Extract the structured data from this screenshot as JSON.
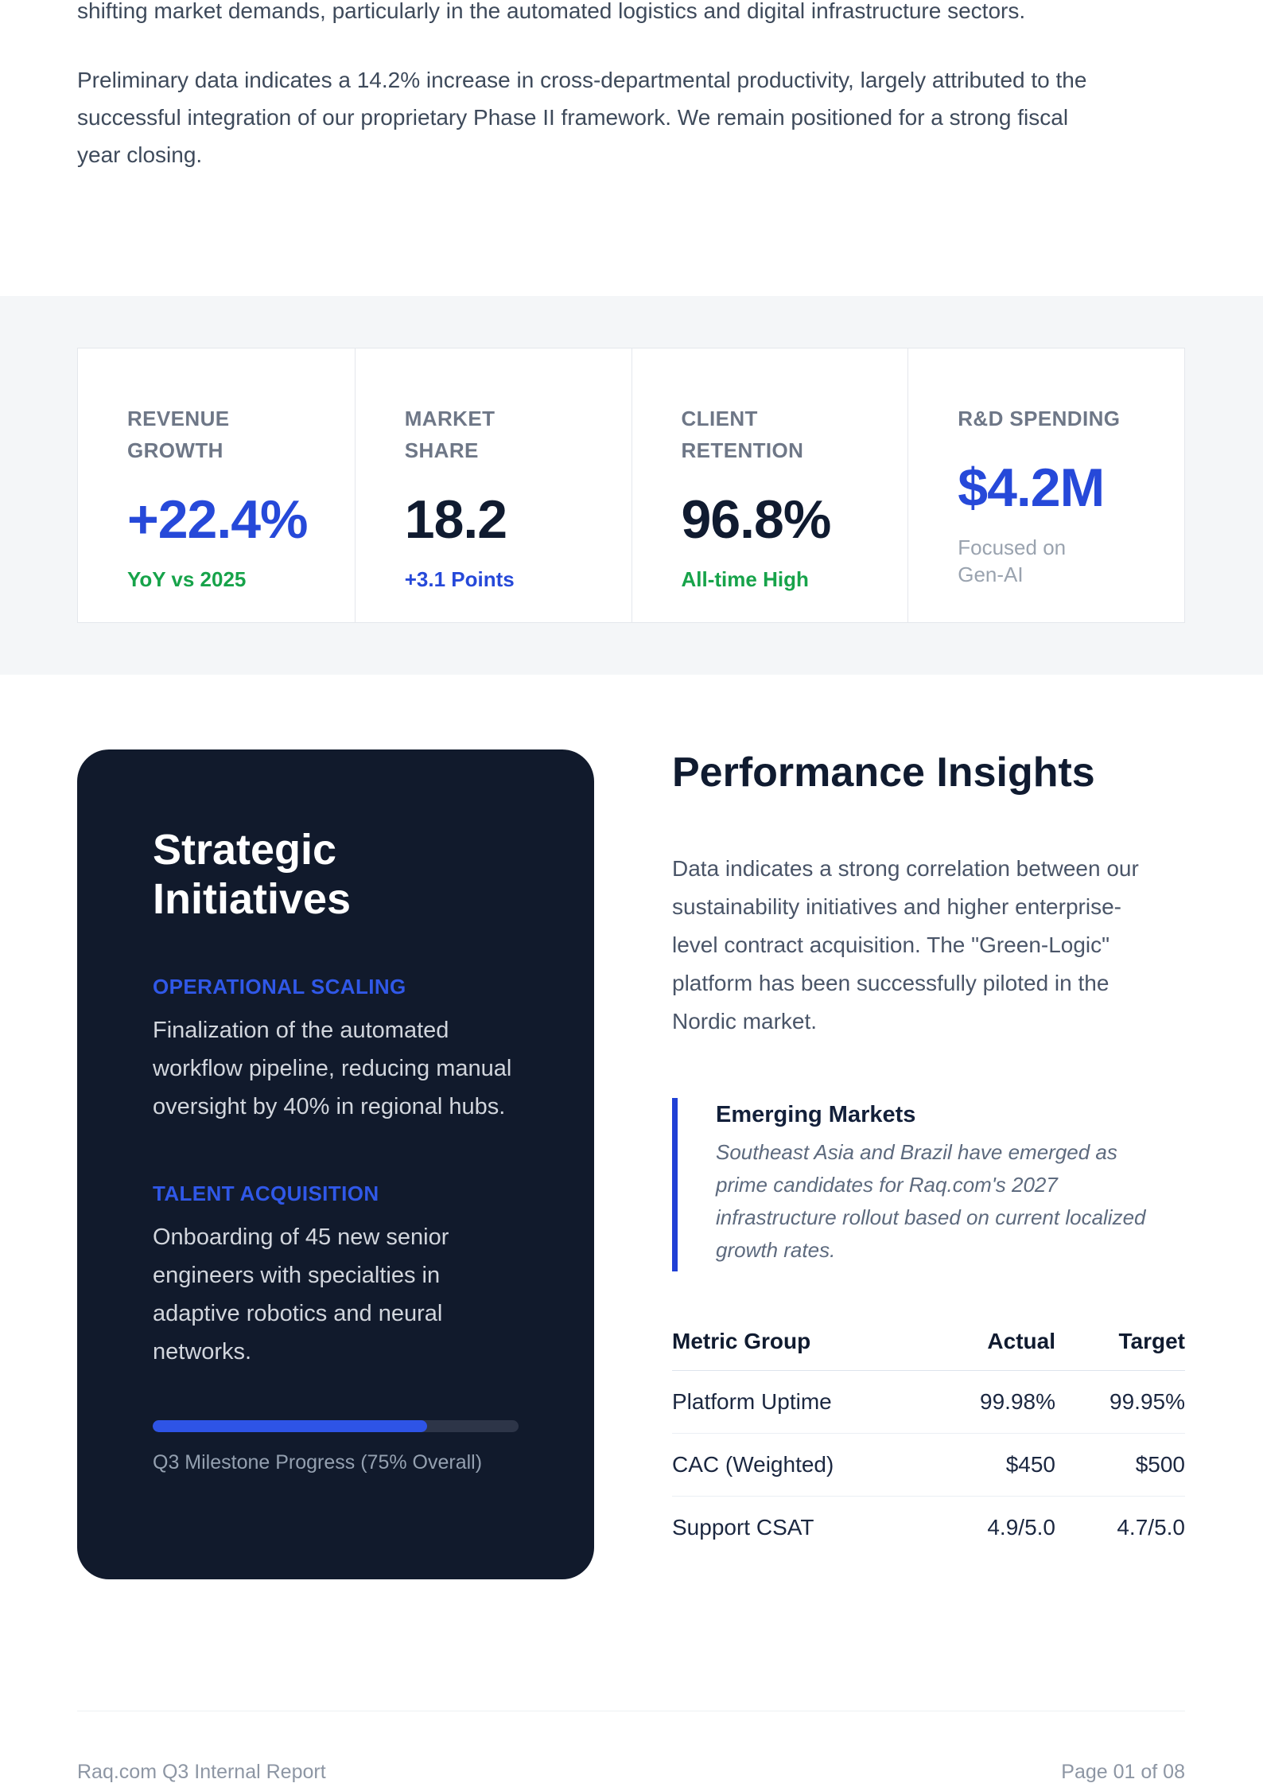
{
  "intro": {
    "p1": "shifting market demands, particularly in the automated logistics and digital infrastructure sectors.",
    "p2": "Preliminary data indicates a 14.2% increase in cross-departmental productivity, largely attributed to the successful integration of our proprietary Phase II framework. We remain positioned for a strong fiscal year closing."
  },
  "stats": [
    {
      "label": "REVENUE GROWTH",
      "value": "+22.4%",
      "sub": "YoY vs 2025"
    },
    {
      "label": "MARKET SHARE",
      "value": "18.2",
      "sub": "+3.1 Points"
    },
    {
      "label": "CLIENT RETENTION",
      "value": "96.8%",
      "sub": "All-time High"
    },
    {
      "label": "R&D SPENDING",
      "value": "$4.2M",
      "sub": "Focused on Gen-AI"
    }
  ],
  "strategic": {
    "title": "Strategic Initiatives",
    "sections": [
      {
        "label": "OPERATIONAL SCALING",
        "text": "Finalization of the automated workflow pipeline, reducing manual oversight by 40% in regional hubs."
      },
      {
        "label": "TALENT ACQUISITION",
        "text": "Onboarding of 45 new senior engineers with specialties in adaptive robotics and neural networks."
      }
    ],
    "progress": {
      "percent": 75,
      "label": "Q3 Milestone Progress (75% Overall)"
    }
  },
  "insights": {
    "title": "Performance Insights",
    "paragraph": "Data indicates a strong correlation between our sustainability initiatives and higher enterprise-level contract acquisition. The \"Green-Logic\" platform has been successfully piloted in the Nordic market.",
    "callout": {
      "title": "Emerging Markets",
      "text": "Southeast Asia and Brazil have emerged as prime candidates for Raq.com's 2027 infrastructure rollout based on current localized growth rates."
    },
    "table": {
      "headers": [
        "Metric Group",
        "Actual",
        "Target"
      ],
      "rows": [
        [
          "Platform Uptime",
          "99.98%",
          "99.95%"
        ],
        [
          "CAC (Weighted)",
          "$450",
          "$500"
        ],
        [
          "Support CSAT",
          "4.9/5.0",
          "4.7/5.0"
        ]
      ]
    }
  },
  "footer": {
    "left": "Raq.com Q3 Internal Report",
    "right": "Page 01 of 08"
  },
  "colors": {
    "accent_blue": "#2649d9",
    "positive_green": "#17a34a",
    "navy_text": "#101b30",
    "dark_card_bg": "#111a2c",
    "band_bg": "#f4f6f8",
    "muted_gray": "#9aa3af"
  }
}
